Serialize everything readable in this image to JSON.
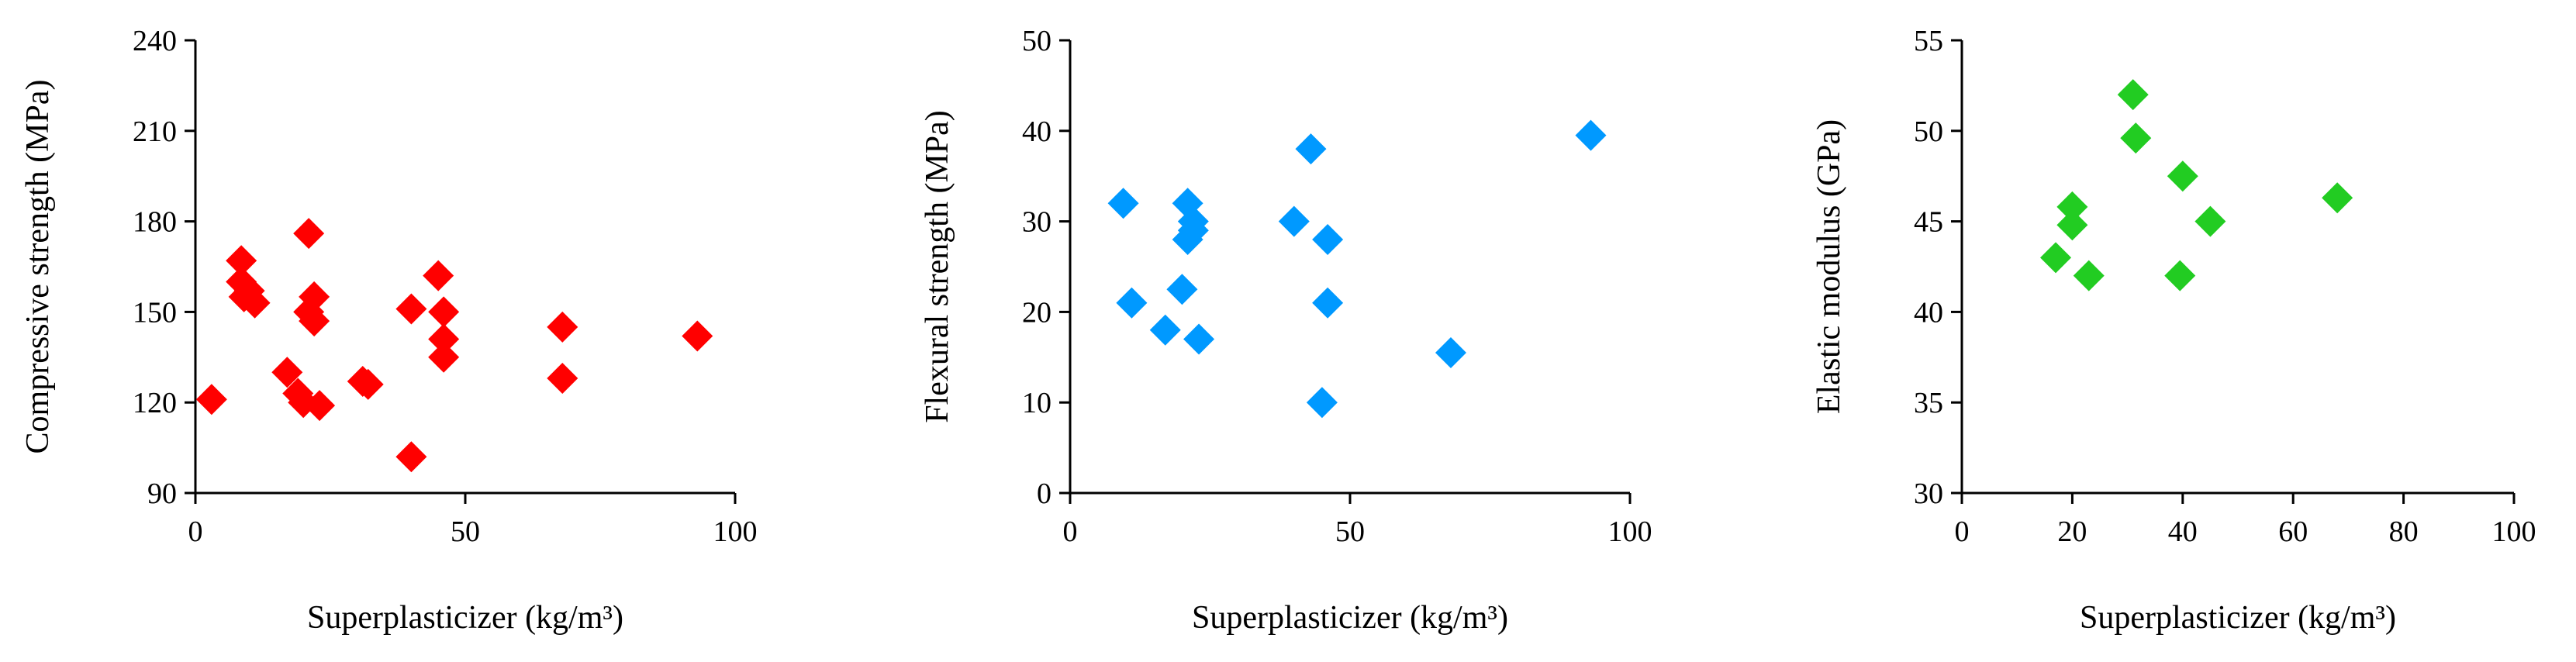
{
  "chart_data": [
    {
      "type": "scatter",
      "title": "",
      "xlabel": "Superplasticizer  (kg/m³)",
      "ylabel": "Compressive strength (MPa)",
      "xlim": [
        0,
        100
      ],
      "ylim": [
        90,
        240
      ],
      "xticks": [
        0,
        50,
        100
      ],
      "yticks": [
        90,
        120,
        150,
        180,
        210,
        240
      ],
      "grid": false,
      "marker": "diamond",
      "color": "#ff0000",
      "points": [
        [
          3,
          121
        ],
        [
          8.5,
          167
        ],
        [
          8.5,
          160
        ],
        [
          9,
          155
        ],
        [
          10,
          157
        ],
        [
          11,
          153
        ],
        [
          17,
          130
        ],
        [
          19,
          123
        ],
        [
          20,
          120
        ],
        [
          21,
          176
        ],
        [
          21,
          150
        ],
        [
          22,
          155
        ],
        [
          22,
          147
        ],
        [
          23,
          119
        ],
        [
          31,
          127
        ],
        [
          32,
          126
        ],
        [
          40,
          102
        ],
        [
          40,
          151
        ],
        [
          45,
          162
        ],
        [
          46,
          150
        ],
        [
          46,
          141
        ],
        [
          46,
          135
        ],
        [
          68,
          145
        ],
        [
          68,
          128
        ],
        [
          93,
          142
        ]
      ]
    },
    {
      "type": "scatter",
      "title": "",
      "xlabel": "Superplasticizer  (kg/m³)",
      "ylabel": "Flexural strength (MPa)",
      "xlim": [
        0,
        100
      ],
      "ylim": [
        0,
        50
      ],
      "xticks": [
        0,
        50,
        100
      ],
      "yticks": [
        0,
        10,
        20,
        30,
        40,
        50
      ],
      "grid": false,
      "marker": "diamond",
      "color": "#0099ff",
      "points": [
        [
          9.5,
          32
        ],
        [
          11,
          21
        ],
        [
          17,
          18
        ],
        [
          20,
          22.5
        ],
        [
          21,
          32
        ],
        [
          21,
          28
        ],
        [
          22,
          30
        ],
        [
          22,
          29
        ],
        [
          23,
          17
        ],
        [
          40,
          30
        ],
        [
          43,
          38
        ],
        [
          45,
          10
        ],
        [
          46,
          28
        ],
        [
          46,
          21
        ],
        [
          68,
          15.5
        ],
        [
          93,
          39.5
        ]
      ]
    },
    {
      "type": "scatter",
      "title": "",
      "xlabel": "Superplasticizer  (kg/m³)",
      "ylabel": "Elastic modulus  (GPa)",
      "xlim": [
        0,
        100
      ],
      "ylim": [
        30,
        55
      ],
      "xticks": [
        0,
        20,
        40,
        60,
        80,
        100
      ],
      "yticks": [
        30,
        35,
        40,
        45,
        50,
        55
      ],
      "grid": false,
      "marker": "diamond",
      "color": "#22cc22",
      "points": [
        [
          17,
          43
        ],
        [
          20,
          45.8
        ],
        [
          20,
          44.8
        ],
        [
          23,
          42
        ],
        [
          31,
          52
        ],
        [
          31.5,
          49.6
        ],
        [
          39.5,
          42
        ],
        [
          40,
          47.5
        ],
        [
          45,
          45
        ],
        [
          68,
          46.3
        ]
      ]
    }
  ]
}
